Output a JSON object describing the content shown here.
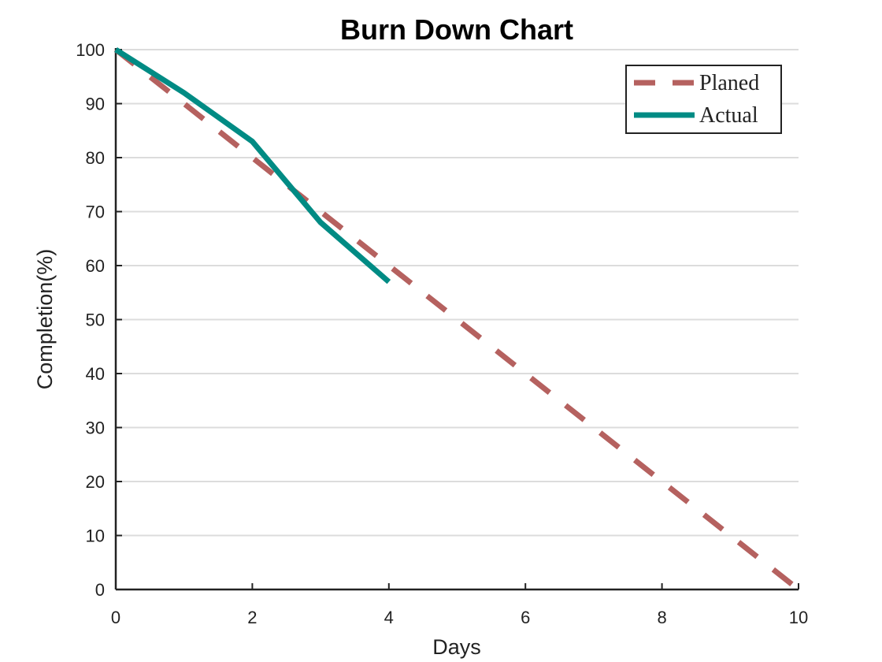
{
  "chart_data": {
    "type": "line",
    "title": "Burn Down Chart",
    "xlabel": "Days",
    "ylabel": "Completion(%)",
    "xlim": [
      0,
      10
    ],
    "ylim": [
      0,
      100
    ],
    "x_ticks": [
      "0",
      "2",
      "4",
      "6",
      "8",
      "10"
    ],
    "y_ticks": [
      "0",
      "10",
      "20",
      "30",
      "40",
      "50",
      "60",
      "70",
      "80",
      "90",
      "100"
    ],
    "grid": "horizontal",
    "legend_position": "top-right",
    "series": [
      {
        "name": "Planed",
        "style": "dashed",
        "color": "#b5615f",
        "x": [
          0,
          10
        ],
        "y": [
          100,
          0
        ]
      },
      {
        "name": "Actual",
        "style": "solid",
        "color": "#008b84",
        "x": [
          0,
          1,
          2,
          2.6,
          3,
          4
        ],
        "y": [
          100,
          92,
          83,
          74,
          68,
          57
        ]
      }
    ]
  }
}
